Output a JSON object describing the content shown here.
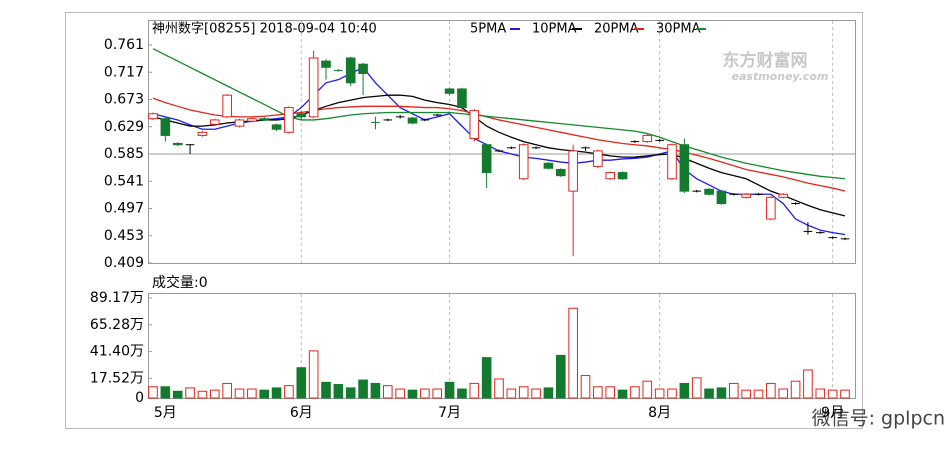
{
  "watermark": "东方财富网",
  "watermark_sub": "eastmoney.com",
  "overlay": "微信号: gplpcn",
  "chart_data": [
    {
      "type": "candlestick",
      "title": "神州数字[08255] 2018-09-04 10:40",
      "categories": [
        null,
        "5月",
        null,
        null,
        null,
        null,
        null,
        null,
        null,
        null,
        null,
        null,
        "6月",
        null,
        null,
        null,
        null,
        null,
        null,
        null,
        null,
        null,
        null,
        null,
        "7月",
        null,
        null,
        null,
        null,
        null,
        null,
        null,
        null,
        null,
        null,
        null,
        null,
        null,
        null,
        null,
        null,
        "8月",
        null,
        null,
        null,
        null,
        null,
        null,
        null,
        null,
        null,
        null,
        null,
        null,
        null,
        "9月",
        null
      ],
      "open": [
        0.642,
        0.642,
        0.602,
        0.6,
        0.615,
        0.633,
        0.645,
        0.63,
        0.638,
        0.642,
        0.632,
        0.62,
        0.65,
        0.645,
        0.735,
        0.72,
        0.74,
        0.73,
        0.636,
        0.64,
        0.645,
        0.643,
        0.64,
        0.648,
        0.69,
        0.69,
        0.61,
        0.6,
        0.59,
        0.595,
        0.545,
        0.595,
        0.57,
        0.56,
        0.525,
        0.595,
        0.565,
        0.545,
        0.555,
        0.605,
        0.605,
        0.607,
        0.545,
        0.6,
        0.525,
        0.528,
        0.525,
        0.52,
        0.515,
        0.52,
        0.48,
        0.515,
        0.505,
        0.46,
        0.458,
        0.45,
        0.448
      ],
      "close": [
        0.65,
        0.615,
        0.6,
        0.6,
        0.62,
        0.64,
        0.68,
        0.64,
        0.642,
        0.64,
        0.625,
        0.66,
        0.645,
        0.74,
        0.725,
        0.719,
        0.7,
        0.715,
        0.635,
        0.64,
        0.645,
        0.635,
        0.64,
        0.648,
        0.683,
        0.66,
        0.655,
        0.555,
        0.59,
        0.595,
        0.6,
        0.595,
        0.562,
        0.55,
        0.59,
        0.595,
        0.59,
        0.555,
        0.545,
        0.605,
        0.615,
        0.607,
        0.6,
        0.525,
        0.525,
        0.52,
        0.505,
        0.52,
        0.52,
        0.52,
        0.515,
        0.52,
        0.505,
        0.46,
        0.458,
        0.45,
        0.448
      ],
      "high": [
        0.652,
        0.645,
        0.604,
        0.601,
        0.622,
        0.642,
        0.682,
        0.642,
        0.645,
        0.645,
        0.634,
        0.662,
        0.655,
        0.752,
        0.738,
        0.722,
        0.742,
        0.732,
        0.645,
        0.642,
        0.648,
        0.645,
        0.642,
        0.65,
        0.692,
        0.692,
        0.658,
        0.602,
        0.592,
        0.597,
        0.602,
        0.597,
        0.572,
        0.562,
        0.6,
        0.597,
        0.592,
        0.557,
        0.557,
        0.607,
        0.617,
        0.609,
        0.602,
        0.61,
        0.527,
        0.53,
        0.527,
        0.522,
        0.522,
        0.522,
        0.517,
        0.522,
        0.507,
        0.475,
        0.46,
        0.452,
        0.45
      ],
      "low": [
        0.64,
        0.605,
        0.598,
        0.585,
        0.613,
        0.63,
        0.643,
        0.628,
        0.636,
        0.638,
        0.622,
        0.618,
        0.64,
        0.643,
        0.705,
        0.718,
        0.695,
        0.68,
        0.625,
        0.638,
        0.642,
        0.633,
        0.638,
        0.646,
        0.68,
        0.655,
        0.605,
        0.53,
        0.588,
        0.593,
        0.543,
        0.593,
        0.56,
        0.548,
        0.42,
        0.59,
        0.562,
        0.543,
        0.543,
        0.603,
        0.603,
        0.605,
        0.543,
        0.522,
        0.523,
        0.518,
        0.503,
        0.518,
        0.513,
        0.518,
        0.478,
        0.513,
        0.503,
        0.455,
        0.456,
        0.448,
        0.446
      ],
      "up_color": "#e3261c",
      "down_color": "#137a2e",
      "flat_color": "#000000",
      "series": [
        {
          "name": "5PMA",
          "color": "#1c1cf0",
          "values": [
            0.65,
            0.645,
            0.64,
            0.632,
            0.625,
            0.625,
            0.63,
            0.635,
            0.638,
            0.64,
            0.642,
            0.645,
            0.66,
            0.68,
            0.7,
            0.705,
            0.715,
            0.725,
            0.7,
            0.68,
            0.66,
            0.65,
            0.64,
            0.645,
            0.65,
            0.63,
            0.61,
            0.6,
            0.59,
            0.585,
            0.58,
            0.578,
            0.575,
            0.572,
            0.57,
            0.572,
            0.575,
            0.575,
            0.577,
            0.578,
            0.58,
            0.585,
            0.59,
            0.56,
            0.545,
            0.535,
            0.525,
            0.52,
            0.52,
            0.52,
            0.52,
            0.505,
            0.48,
            0.47,
            0.462,
            0.458,
            0.455
          ]
        },
        {
          "name": "10PMA",
          "color": "#000000",
          "values": [
            0.645,
            0.64,
            0.635,
            0.63,
            0.63,
            0.632,
            0.635,
            0.637,
            0.638,
            0.64,
            0.64,
            0.642,
            0.648,
            0.655,
            0.662,
            0.668,
            0.672,
            0.676,
            0.678,
            0.68,
            0.68,
            0.678,
            0.672,
            0.668,
            0.665,
            0.66,
            0.645,
            0.63,
            0.62,
            0.612,
            0.605,
            0.6,
            0.595,
            0.592,
            0.59,
            0.588,
            0.585,
            0.582,
            0.58,
            0.58,
            0.582,
            0.584,
            0.585,
            0.578,
            0.57,
            0.562,
            0.555,
            0.55,
            0.545,
            0.535,
            0.525,
            0.518,
            0.51,
            0.502,
            0.495,
            0.49,
            0.485
          ]
        },
        {
          "name": "20PMA",
          "color": "#e3261c",
          "values": [
            0.675,
            0.668,
            0.662,
            0.656,
            0.652,
            0.648,
            0.646,
            0.645,
            0.645,
            0.646,
            0.648,
            0.65,
            0.652,
            0.655,
            0.658,
            0.66,
            0.661,
            0.662,
            0.662,
            0.662,
            0.662,
            0.661,
            0.66,
            0.66,
            0.658,
            0.655,
            0.65,
            0.645,
            0.64,
            0.636,
            0.632,
            0.628,
            0.624,
            0.62,
            0.616,
            0.612,
            0.608,
            0.605,
            0.602,
            0.6,
            0.598,
            0.595,
            0.592,
            0.588,
            0.583,
            0.578,
            0.572,
            0.566,
            0.56,
            0.556,
            0.552,
            0.548,
            0.543,
            0.538,
            0.534,
            0.53,
            0.525
          ]
        },
        {
          "name": "30PMA",
          "color": "#138a2e",
          "values": [
            0.755,
            0.745,
            0.735,
            0.725,
            0.715,
            0.705,
            0.695,
            0.685,
            0.675,
            0.665,
            0.655,
            0.645,
            0.64,
            0.64,
            0.642,
            0.645,
            0.648,
            0.65,
            0.651,
            0.652,
            0.652,
            0.652,
            0.652,
            0.652,
            0.652,
            0.65,
            0.648,
            0.646,
            0.644,
            0.642,
            0.64,
            0.638,
            0.636,
            0.634,
            0.632,
            0.63,
            0.628,
            0.626,
            0.624,
            0.622,
            0.618,
            0.612,
            0.605,
            0.598,
            0.592,
            0.586,
            0.58,
            0.575,
            0.57,
            0.566,
            0.562,
            0.558,
            0.555,
            0.552,
            0.549,
            0.547,
            0.545
          ]
        }
      ],
      "ylim": [
        0.409,
        0.761
      ],
      "yticks": [
        0.409,
        0.453,
        0.497,
        0.541,
        0.585,
        0.629,
        0.673,
        0.717,
        0.761
      ]
    },
    {
      "type": "bar",
      "title": "成交量:0",
      "values": [
        10,
        10,
        6,
        9,
        6,
        7,
        13,
        8,
        8,
        7,
        9,
        11,
        27,
        42,
        14,
        12,
        9,
        16,
        13,
        11,
        8,
        7,
        8,
        8,
        14,
        8,
        13,
        36,
        17,
        8,
        10,
        8,
        9,
        38,
        80,
        20,
        10,
        10,
        7,
        10,
        15,
        8,
        8,
        13,
        18,
        8,
        9,
        13,
        7,
        7,
        13,
        8,
        15,
        25,
        8,
        7,
        7
      ],
      "ylim": [
        0,
        89.17
      ],
      "yticks": [
        {
          "value": 0,
          "label": "0"
        },
        {
          "value": 17.52,
          "label": "17.52万"
        },
        {
          "value": 41.4,
          "label": "41.40万"
        },
        {
          "value": 65.28,
          "label": "65.28万"
        },
        {
          "value": 89.17,
          "label": "89.17万"
        }
      ]
    }
  ]
}
